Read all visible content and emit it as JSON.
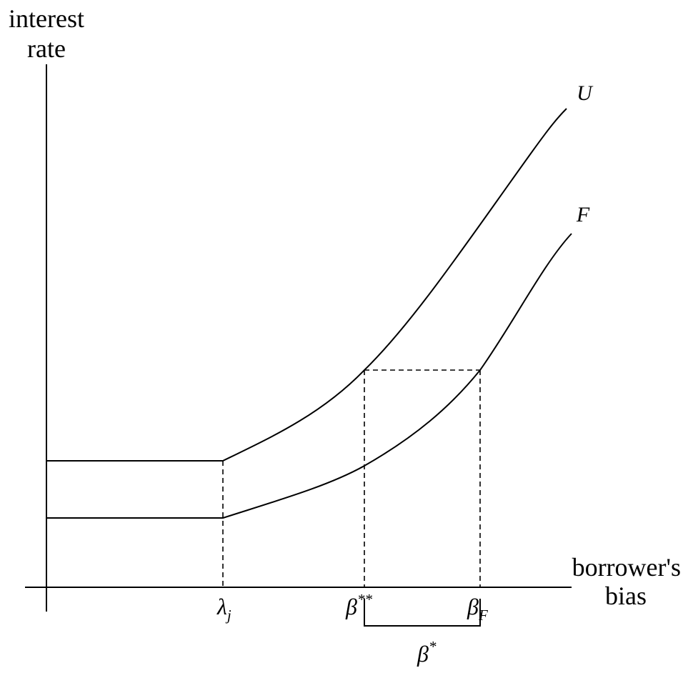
{
  "y_axis_label": [
    "interest",
    "rate"
  ],
  "x_axis_label": [
    "borrower's",
    "bias"
  ],
  "curves": {
    "upper": "U",
    "lower": "F"
  },
  "ticks": {
    "lambda": {
      "base": "λ",
      "sub": "j"
    },
    "beta_double_star": {
      "base": "β",
      "sup": "**"
    },
    "beta_F": {
      "base": "β",
      "sub": "F"
    },
    "beta_star": {
      "base": "β",
      "sup": "*"
    }
  },
  "colors": {
    "line": "#000000",
    "background": "#ffffff"
  }
}
